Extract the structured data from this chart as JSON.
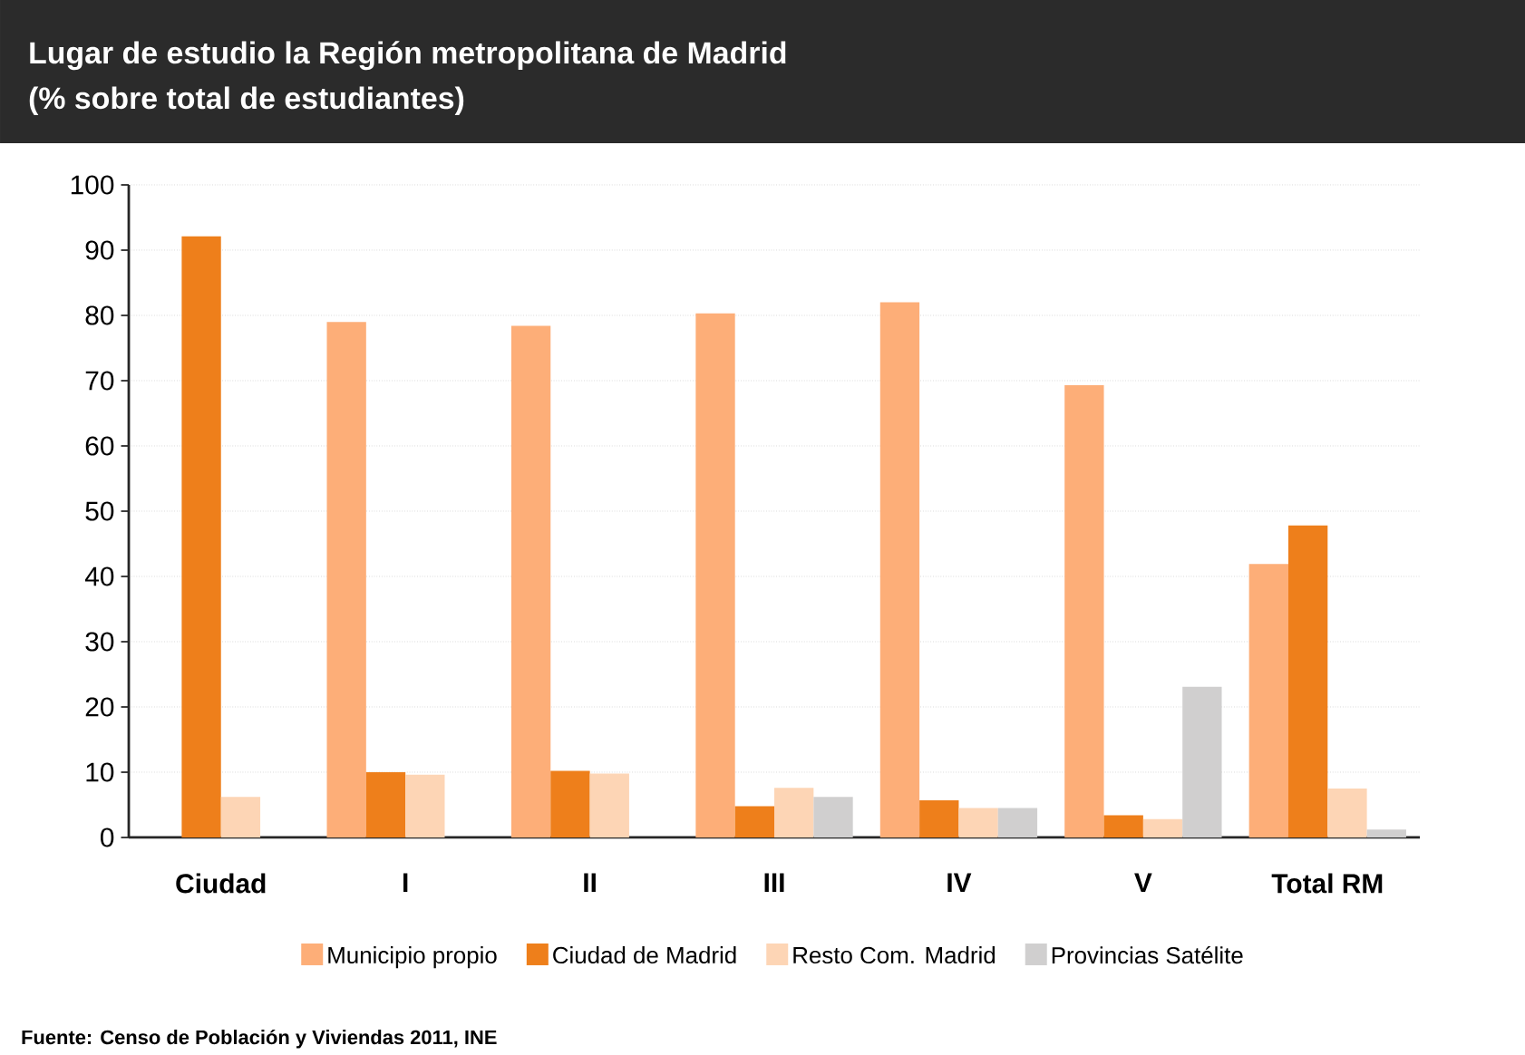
{
  "chart_data": {
    "type": "bar",
    "title": "Lugar de estudio la Región metropolitana de Madrid",
    "subtitle": "(% sobre total de estudiantes)",
    "categories": [
      "Ciudad",
      "I",
      "II",
      "III",
      "IV",
      "V",
      "Total RM"
    ],
    "series": [
      {
        "name": "Municipio propio",
        "color": "#fdae78",
        "values": [
          null,
          79.0,
          78.4,
          80.3,
          82.0,
          69.3,
          41.9
        ]
      },
      {
        "name": "Ciudad de Madrid",
        "color": "#ee7f1b",
        "values": [
          92.1,
          10.0,
          10.2,
          4.8,
          5.7,
          3.4,
          47.8
        ]
      },
      {
        "name": "Resto Com. Madrid",
        "color": "#fdd5b5",
        "values": [
          6.2,
          9.6,
          9.8,
          7.6,
          4.5,
          2.8,
          7.5
        ]
      },
      {
        "name": "Provincias Satélite",
        "color": "#d0cfcf",
        "values": [
          null,
          null,
          null,
          6.2,
          4.5,
          23.1,
          1.2
        ]
      }
    ],
    "ylim": [
      0,
      100
    ],
    "yticks": [
      0,
      10,
      20,
      30,
      40,
      50,
      60,
      70,
      80,
      90,
      100
    ],
    "grid": "y",
    "legend": "bottom",
    "annotations": [
      "Fuente: Censo de Población y Viviendas 2011, INE"
    ]
  }
}
